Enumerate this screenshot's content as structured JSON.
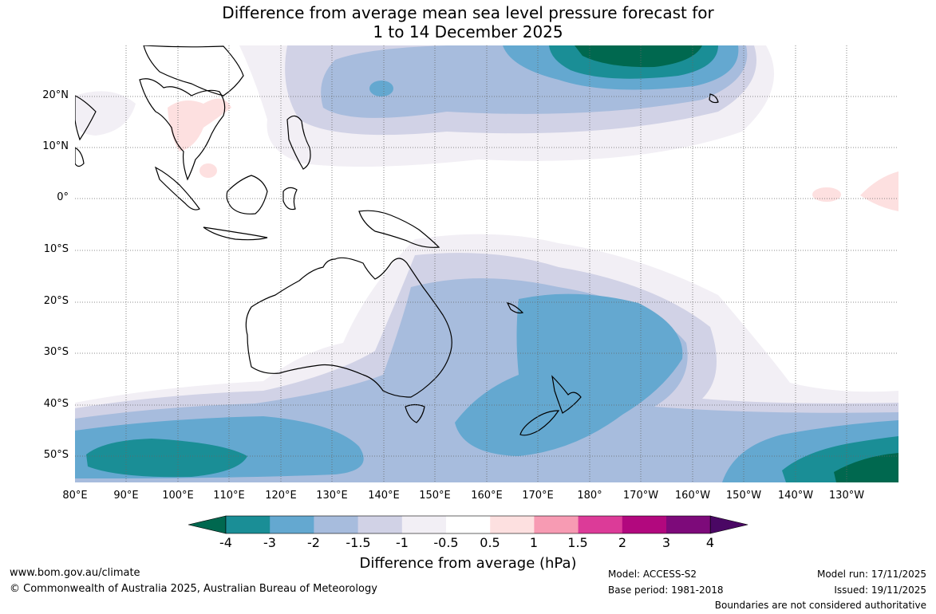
{
  "title": {
    "line1": "Difference from average mean sea level pressure forecast for",
    "line2": "1 to 14 December 2025"
  },
  "map": {
    "lat_labels": [
      "20°N",
      "10°N",
      "0°",
      "10°S",
      "20°S",
      "30°S",
      "40°S",
      "50°S"
    ],
    "lon_labels": [
      "80°E",
      "90°E",
      "100°E",
      "110°E",
      "120°E",
      "130°E",
      "140°E",
      "150°E",
      "160°E",
      "170°E",
      "180°",
      "170°W",
      "160°W",
      "150°W",
      "140°W",
      "130°W"
    ],
    "lat_range": [
      -55,
      30
    ],
    "lon_range_east": [
      80,
      240
    ]
  },
  "colorbar": {
    "title": "Difference from average (hPa)",
    "ticks": [
      "-4",
      "-3",
      "-2",
      "-1.5",
      "-1",
      "-0.5",
      "0.5",
      "1",
      "1.5",
      "2",
      "3",
      "4"
    ],
    "colors": [
      "#00684f",
      "#1a8e96",
      "#64a8d0",
      "#a7bcdd",
      "#d1d2e6",
      "#f2eff5",
      "#ffffff",
      "#fde0e0",
      "#f79bb3",
      "#dc3b98",
      "#b2087e",
      "#7d0a7a",
      "#4a0764"
    ]
  },
  "footer": {
    "website": "www.bom.gov.au/climate",
    "copyright": "© Commonwealth of Australia 2025, Australian Bureau of Meteorology",
    "model": "Model: ACCESS-S2",
    "base_period": "Base period: 1981-2018",
    "model_run": "Model run: 17/11/2025",
    "issued": "Issued: 19/11/2025",
    "disclaimer": "Boundaries are not considered authoritative"
  }
}
